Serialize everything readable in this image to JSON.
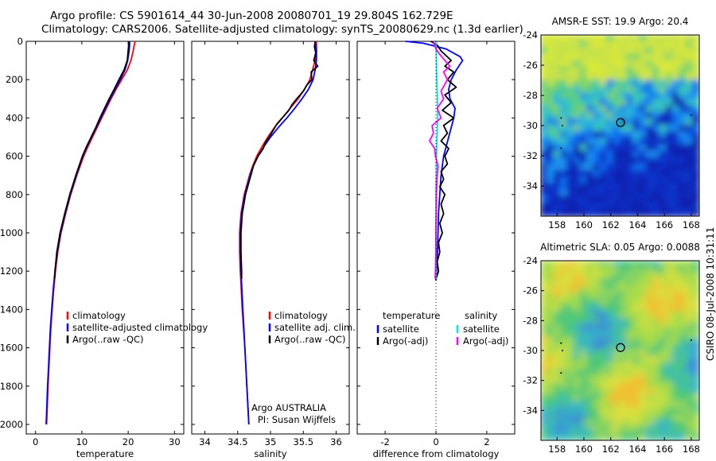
{
  "title": {
    "line1": "Argo profile: CS 5901614_44 30-Jun-2008 20080701_19 29.804S 162.729E",
    "line2": "Climatology: CARS2006. Satellite-adjusted climatology: synTS_20080629.nc (1.3d earlier)"
  },
  "side_credit": "CSIRO 08-Jul-2008 10:31:11",
  "colors": {
    "climatology": "#ff0000",
    "satellite": "#0000ff",
    "argo": "#000000",
    "salinity_satellite": "#00e5e5",
    "salinity_argo": "#ff00ff"
  },
  "chart_data": [
    {
      "type": "line",
      "id": "temperature",
      "xlabel": "temperature",
      "xlim": [
        -2,
        32
      ],
      "xticks": [
        0,
        10,
        20,
        30
      ],
      "ylim": [
        2050,
        0
      ],
      "yticks": [
        0,
        200,
        400,
        600,
        800,
        1000,
        1200,
        1400,
        1600,
        1800,
        2000
      ],
      "legend": [
        "climatology",
        "satellite-adjusted climatology",
        "Argo(..raw -QC)"
      ],
      "series": [
        {
          "name": "climatology",
          "color": "#ff0000",
          "depth": [
            0,
            20,
            50,
            100,
            150,
            200,
            250,
            300,
            350,
            400,
            450,
            500,
            550,
            600,
            700,
            800,
            900,
            1000,
            1100,
            1200,
            1300,
            1400,
            1500,
            1600,
            1700,
            1800,
            1900,
            2000
          ],
          "values": [
            21.5,
            21.3,
            21.1,
            20.6,
            19.8,
            18.6,
            17.4,
            16.3,
            15.3,
            14.3,
            13.3,
            12.3,
            11.3,
            10.4,
            8.9,
            7.6,
            6.5,
            5.5,
            4.8,
            4.3,
            3.9,
            3.6,
            3.3,
            3.1,
            2.9,
            2.7,
            2.55,
            2.4
          ]
        },
        {
          "name": "satellite-adjusted climatology",
          "color": "#0000ff",
          "depth": [
            0,
            20,
            50,
            100,
            150,
            200,
            250,
            300,
            350,
            400,
            450,
            500,
            550,
            600,
            700,
            800,
            900,
            1000,
            1100,
            1200,
            1300,
            1400,
            1500,
            1600,
            1700,
            1800,
            1900,
            2000
          ],
          "values": [
            20.3,
            20.3,
            20.2,
            19.9,
            19.3,
            18.3,
            17.2,
            16.1,
            15.1,
            14.1,
            13.1,
            12.1,
            11.1,
            10.2,
            8.8,
            7.5,
            6.4,
            5.4,
            4.7,
            4.2,
            3.8,
            3.5,
            3.2,
            3.0,
            2.8,
            2.6,
            2.45,
            2.3
          ]
        },
        {
          "name": "Argo(..raw -QC)",
          "color": "#000000",
          "depth": [
            0,
            20,
            50,
            100,
            150,
            200,
            250,
            300,
            350,
            400,
            450,
            500,
            550,
            600,
            700,
            800,
            900,
            1000,
            1100,
            1200,
            1240
          ],
          "values": [
            20.1,
            20.1,
            20.0,
            19.8,
            19.1,
            18.0,
            17.0,
            15.9,
            14.9,
            13.9,
            13.0,
            12.0,
            11.0,
            10.1,
            8.7,
            7.4,
            6.3,
            5.3,
            4.6,
            4.2,
            4.1
          ]
        }
      ]
    },
    {
      "type": "line",
      "id": "salinity",
      "xlabel": "salinity",
      "xlim": [
        33.8,
        36.2
      ],
      "xticks": [
        34,
        34.5,
        35,
        35.5,
        36
      ],
      "ylim": [
        2050,
        0
      ],
      "legend": [
        "climatology",
        "satellite adj. clim.",
        "Argo(..raw -QC)"
      ],
      "annotation": [
        "Argo AUSTRALIA",
        "PI: Susan Wijffels"
      ],
      "series": [
        {
          "name": "climatology",
          "color": "#ff0000",
          "depth": [
            0,
            50,
            100,
            150,
            200,
            250,
            300,
            350,
            400,
            450,
            500,
            550,
            600,
            650,
            700,
            800,
            900,
            1000,
            1100,
            1200,
            1400,
            1600,
            1800,
            2000
          ],
          "values": [
            35.7,
            35.7,
            35.68,
            35.64,
            35.6,
            35.52,
            35.42,
            35.3,
            35.18,
            35.06,
            34.96,
            34.87,
            34.79,
            34.73,
            34.68,
            34.6,
            34.55,
            34.53,
            34.53,
            34.54,
            34.57,
            34.61,
            34.64,
            34.67
          ]
        },
        {
          "name": "satellite adj. clim.",
          "color": "#0000ff",
          "depth": [
            0,
            50,
            100,
            150,
            200,
            250,
            300,
            350,
            400,
            450,
            500,
            550,
            600,
            650,
            700,
            800,
            900,
            1000,
            1100,
            1200,
            1400,
            1600,
            1800,
            2000
          ],
          "values": [
            35.68,
            35.7,
            35.7,
            35.68,
            35.65,
            35.58,
            35.48,
            35.37,
            35.25,
            35.12,
            35.0,
            34.9,
            34.81,
            34.74,
            34.69,
            34.61,
            34.56,
            34.54,
            34.54,
            34.55,
            34.58,
            34.61,
            34.64,
            34.67
          ]
        },
        {
          "name": "Argo(..raw -QC)",
          "color": "#000000",
          "depth": [
            0,
            30,
            60,
            100,
            130,
            160,
            200,
            230,
            260,
            300,
            330,
            360,
            400,
            430,
            460,
            500,
            530,
            560,
            580,
            600,
            650,
            700,
            800,
            900,
            1000,
            1100,
            1200,
            1240
          ],
          "values": [
            35.68,
            35.67,
            35.69,
            35.66,
            35.72,
            35.62,
            35.63,
            35.55,
            35.5,
            35.4,
            35.33,
            35.28,
            35.18,
            35.1,
            35.05,
            34.98,
            34.92,
            34.89,
            34.85,
            34.81,
            34.74,
            34.7,
            34.62,
            34.57,
            34.55,
            34.55,
            34.56,
            34.56
          ]
        }
      ]
    },
    {
      "type": "line",
      "id": "difference",
      "xlabel": "difference from climatology",
      "xlim": [
        -3.1,
        3.1
      ],
      "xticks": [
        -2,
        0,
        2
      ],
      "ylim": [
        2050,
        0
      ],
      "legend": {
        "temperature": {
          "header": "temperature",
          "items": [
            "satellite",
            "Argo(-adj)"
          ]
        },
        "salinity": {
          "header": "salinity",
          "items": [
            "satellite",
            "Argo(-adj)"
          ]
        }
      },
      "series": [
        {
          "name": "temperature satellite",
          "color": "#0000ff",
          "depth": [
            0,
            10,
            40,
            80,
            100,
            150,
            200,
            250,
            300,
            350,
            400,
            500,
            600,
            700,
            800,
            900,
            1000,
            1100,
            1200,
            1250
          ],
          "values": [
            -1.2,
            -0.5,
            0.4,
            0.95,
            1.05,
            0.8,
            0.6,
            0.5,
            0.55,
            0.75,
            0.7,
            0.5,
            0.3,
            0.2,
            0.15,
            0.1,
            0.08,
            0.06,
            0.02,
            0.0
          ]
        },
        {
          "name": "temperature Argo(-adj)",
          "color": "#000000",
          "depth": [
            0,
            20,
            50,
            100,
            130,
            160,
            200,
            240,
            280,
            320,
            360,
            400,
            440,
            480,
            520,
            560,
            600,
            640,
            680,
            720,
            760,
            800,
            850,
            900,
            950,
            1000,
            1050,
            1100,
            1150,
            1200,
            1240
          ],
          "values": [
            -0.2,
            0.05,
            0.2,
            0.6,
            0.35,
            0.7,
            0.45,
            0.8,
            0.35,
            0.6,
            0.25,
            0.7,
            0.3,
            0.45,
            0.2,
            0.5,
            0.35,
            0.45,
            0.2,
            0.3,
            0.15,
            0.35,
            0.2,
            0.3,
            0.15,
            0.25,
            0.1,
            0.15,
            0.05,
            0.1,
            0.0
          ]
        },
        {
          "name": "salinity satellite",
          "color": "#00e5e5",
          "depth": [
            0,
            100,
            200,
            300,
            400,
            500,
            600,
            700,
            800,
            900,
            1000,
            1100,
            1200,
            1240
          ],
          "values": [
            0.0,
            0.02,
            0.03,
            0.06,
            0.07,
            0.04,
            0.02,
            0.01,
            0.0,
            0.0,
            0.0,
            0.0,
            0.0,
            0.0
          ]
        },
        {
          "name": "salinity Argo(-adj)",
          "color": "#ff00ff",
          "depth": [
            0,
            30,
            60,
            100,
            130,
            160,
            200,
            260,
            300,
            350,
            400,
            440,
            480,
            520,
            560,
            600,
            650,
            700,
            800,
            900,
            1000,
            1100,
            1200,
            1240
          ],
          "values": [
            -0.1,
            -0.03,
            0.1,
            0.35,
            0.55,
            0.3,
            0.45,
            0.2,
            0.3,
            0.05,
            0.2,
            -0.15,
            -0.1,
            -0.25,
            -0.05,
            -0.02,
            0.08,
            0.05,
            0.02,
            0.01,
            0.0,
            0.0,
            -0.02,
            -0.03
          ]
        }
      ]
    },
    {
      "type": "heatmap",
      "id": "sst_map",
      "title": "AMSR-E SST: 19.9 Argo: 20.4",
      "xlim": [
        156.8,
        168.6
      ],
      "ylim": [
        -36,
        -24
      ],
      "xticks": [
        158,
        160,
        162,
        164,
        166,
        168
      ],
      "yticks": [
        -24,
        -26,
        -28,
        -30,
        -32,
        -34
      ],
      "marker": {
        "lon": 162.73,
        "lat": -29.8
      }
    },
    {
      "type": "heatmap",
      "id": "sla_map",
      "title": "Altimetric SLA: 0.05 Argo: 0.0088",
      "xlim": [
        156.8,
        168.6
      ],
      "ylim": [
        -36,
        -24
      ],
      "xticks": [
        158,
        160,
        162,
        164,
        166,
        168
      ],
      "yticks": [
        -24,
        -26,
        -28,
        -30,
        -32,
        -34
      ],
      "marker": {
        "lon": 162.73,
        "lat": -29.8
      }
    }
  ]
}
